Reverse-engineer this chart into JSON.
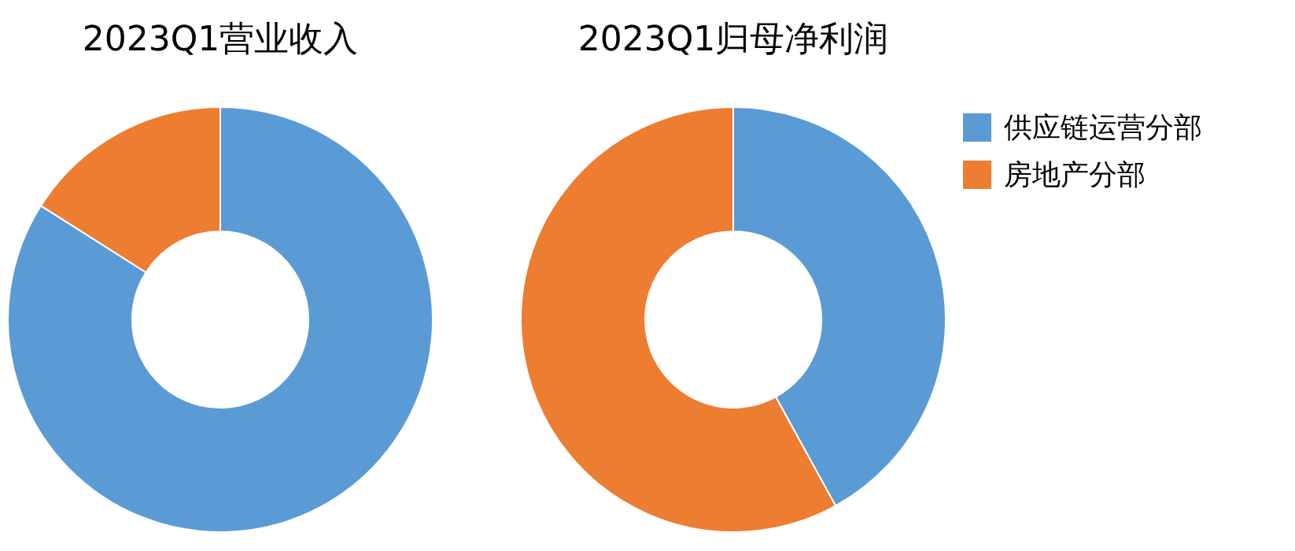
{
  "chart_data": [
    {
      "type": "donut",
      "title": "2023Q1营业收入",
      "categories": [
        null,
        null
      ],
      "values": [
        84,
        16
      ],
      "colors": [
        "#5b9bd5",
        "#ed7d31"
      ]
    },
    {
      "type": "donut",
      "title": "2023Q1归母净利润",
      "categories": [
        "供应链运营分部",
        "房地产分部"
      ],
      "values": [
        42,
        58
      ],
      "colors": [
        "#5b9bd5",
        "#ed7d31"
      ],
      "legend": "right"
    }
  ]
}
